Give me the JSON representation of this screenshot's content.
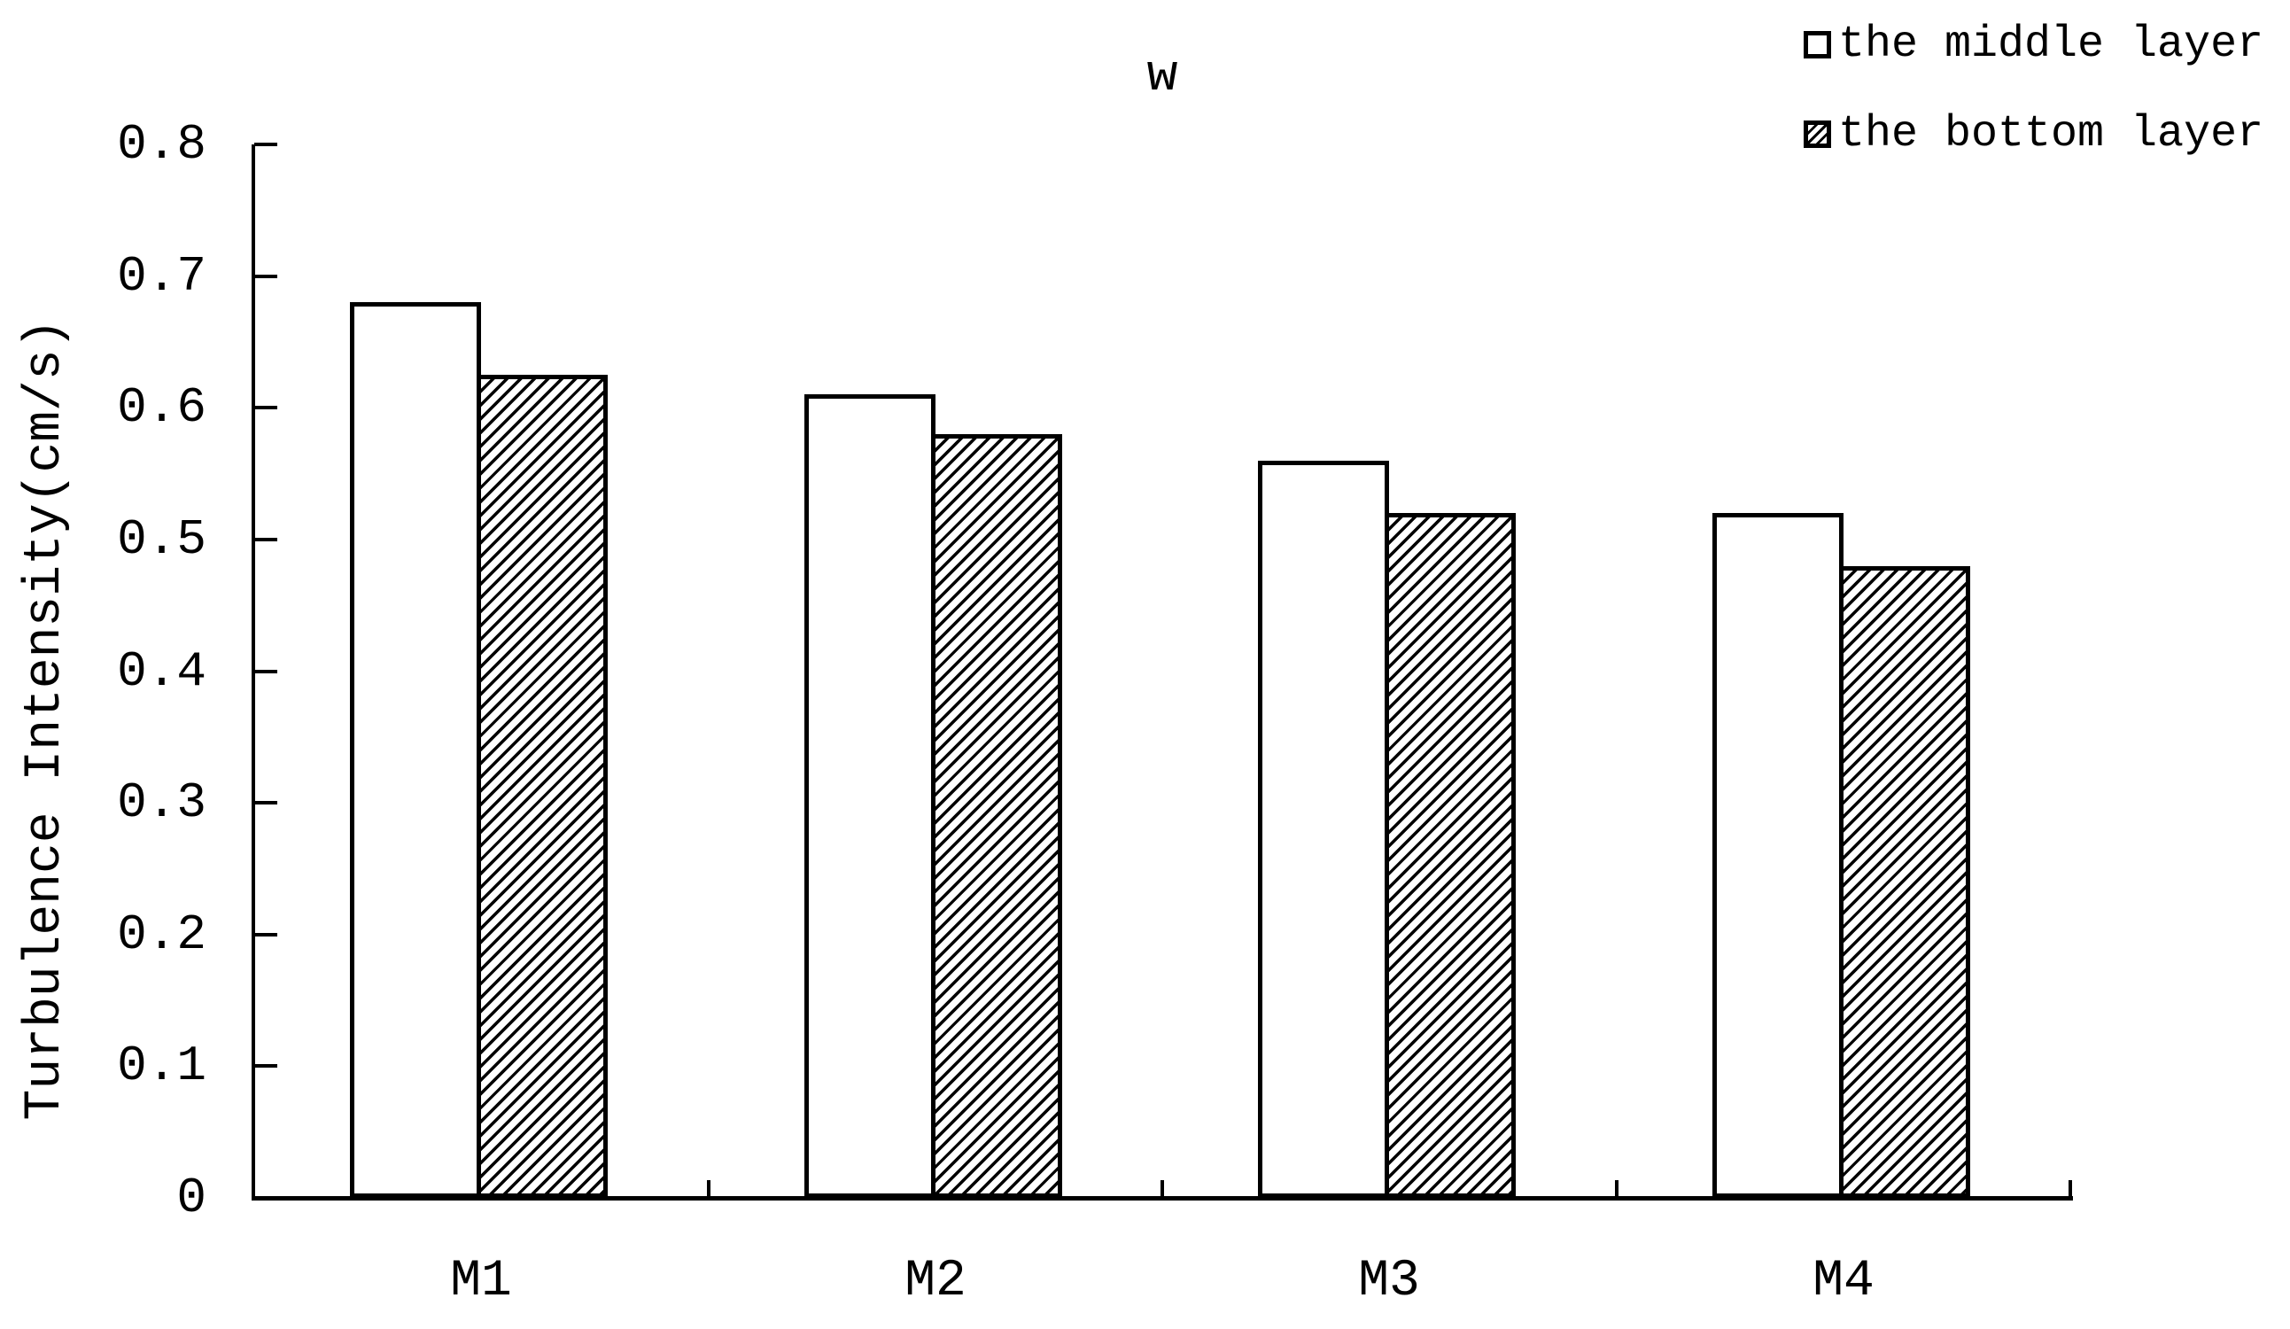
{
  "chart_data": {
    "type": "bar",
    "title": "w",
    "ylabel": "Turbulence Intensity(cm/s)",
    "xlabel": "",
    "categories": [
      "M1",
      "M2",
      "M3",
      "M4"
    ],
    "series": [
      {
        "name": "the middle layer",
        "style": "open",
        "values": [
          0.68,
          0.61,
          0.56,
          0.52
        ]
      },
      {
        "name": "the bottom layer",
        "style": "hatched",
        "values": [
          0.625,
          0.58,
          0.52,
          0.48
        ]
      }
    ],
    "ylim": [
      0,
      0.8
    ],
    "ytick_step": 0.1,
    "ytick_labels": [
      "0",
      "0.1",
      "0.2",
      "0.3",
      "0.4",
      "0.5",
      "0.6",
      "0.7",
      "0.8"
    ],
    "legend_position": "top-right",
    "grid": false
  },
  "colors": {
    "ink": "#000000",
    "background": "#ffffff"
  }
}
